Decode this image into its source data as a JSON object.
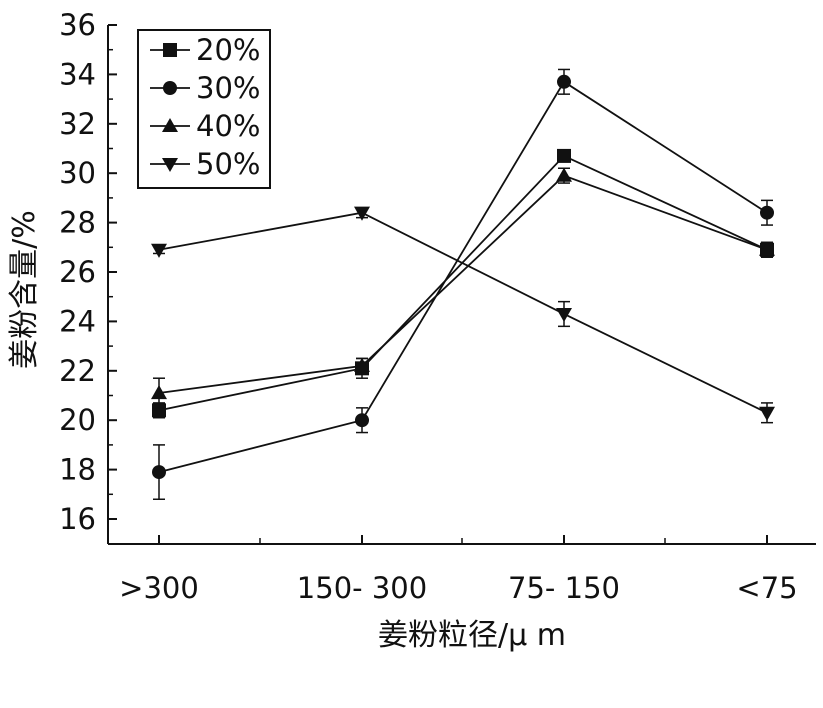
{
  "chart_data": {
    "type": "line",
    "title": "",
    "xlabel": "姜粉粒径/μ m",
    "ylabel": "姜粉含量/%",
    "categories": [
      ">300",
      "150- 300",
      "75- 150",
      "<75"
    ],
    "ylim": [
      16,
      36
    ],
    "yticks": [
      16,
      18,
      20,
      22,
      24,
      26,
      28,
      30,
      32,
      34,
      36
    ],
    "grid": false,
    "legend": "top-left",
    "series": [
      {
        "name": "20%",
        "marker": "square",
        "values": [
          20.4,
          22.1,
          30.7,
          26.9
        ],
        "errors": [
          0.3,
          0.4,
          0.2,
          0.3
        ]
      },
      {
        "name": "30%",
        "marker": "circle",
        "values": [
          17.9,
          20.0,
          33.7,
          28.4
        ],
        "errors": [
          1.1,
          0.5,
          0.5,
          0.5
        ]
      },
      {
        "name": "40%",
        "marker": "triangle-up",
        "values": [
          21.1,
          22.2,
          29.9,
          26.9
        ],
        "errors": [
          0.6,
          0.3,
          0.3,
          0.3
        ]
      },
      {
        "name": "50%",
        "marker": "triangle-down",
        "values": [
          26.9,
          28.4,
          24.3,
          20.3
        ],
        "errors": [
          0.15,
          0.2,
          0.5,
          0.4
        ]
      }
    ]
  }
}
